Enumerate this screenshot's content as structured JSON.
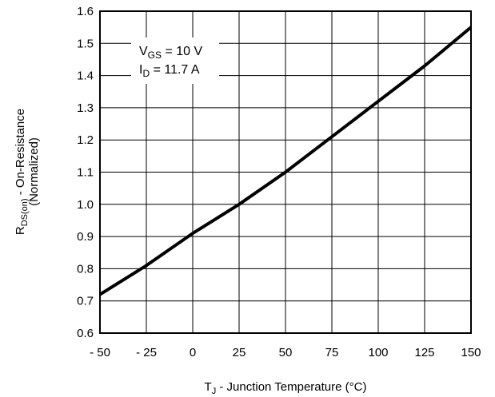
{
  "chart_data": {
    "type": "line",
    "xlabel": {
      "main": "T",
      "sub": "J",
      "rest": " - Junction Temperature (°C)"
    },
    "ylabel": {
      "main": "R",
      "sub": "DS(on)",
      "rest": " - On-Resistance",
      "line2": "(Normalized)"
    },
    "xlim": [
      -50,
      150
    ],
    "ylim": [
      0.6,
      1.6
    ],
    "xticks": [
      -50,
      -25,
      0,
      25,
      50,
      75,
      100,
      125,
      150
    ],
    "xtick_labels": [
      "- 50",
      "- 25",
      "0",
      "25",
      "50",
      "75",
      "100",
      "125",
      "150"
    ],
    "yticks": [
      0.6,
      0.7,
      0.8,
      0.9,
      1.0,
      1.1,
      1.2,
      1.3,
      1.4,
      1.5,
      1.6
    ],
    "ytick_labels": [
      "0.6",
      "0.7",
      "0.8",
      "0.9",
      "1.0",
      "1.1",
      "1.2",
      "1.3",
      "1.4",
      "1.5",
      "1.6"
    ],
    "grid": true,
    "annotations": [
      {
        "main": "V",
        "sub": "GS",
        "rest": " = 10 V"
      },
      {
        "main": "I",
        "sub": "D",
        "rest": " = 11.7 A"
      }
    ],
    "series": [
      {
        "color": "#000000",
        "x": [
          -50,
          -25,
          0,
          25,
          50,
          75,
          100,
          125,
          150
        ],
        "y": [
          0.72,
          0.81,
          0.91,
          1.0,
          1.1,
          1.21,
          1.32,
          1.43,
          1.55
        ]
      }
    ]
  }
}
